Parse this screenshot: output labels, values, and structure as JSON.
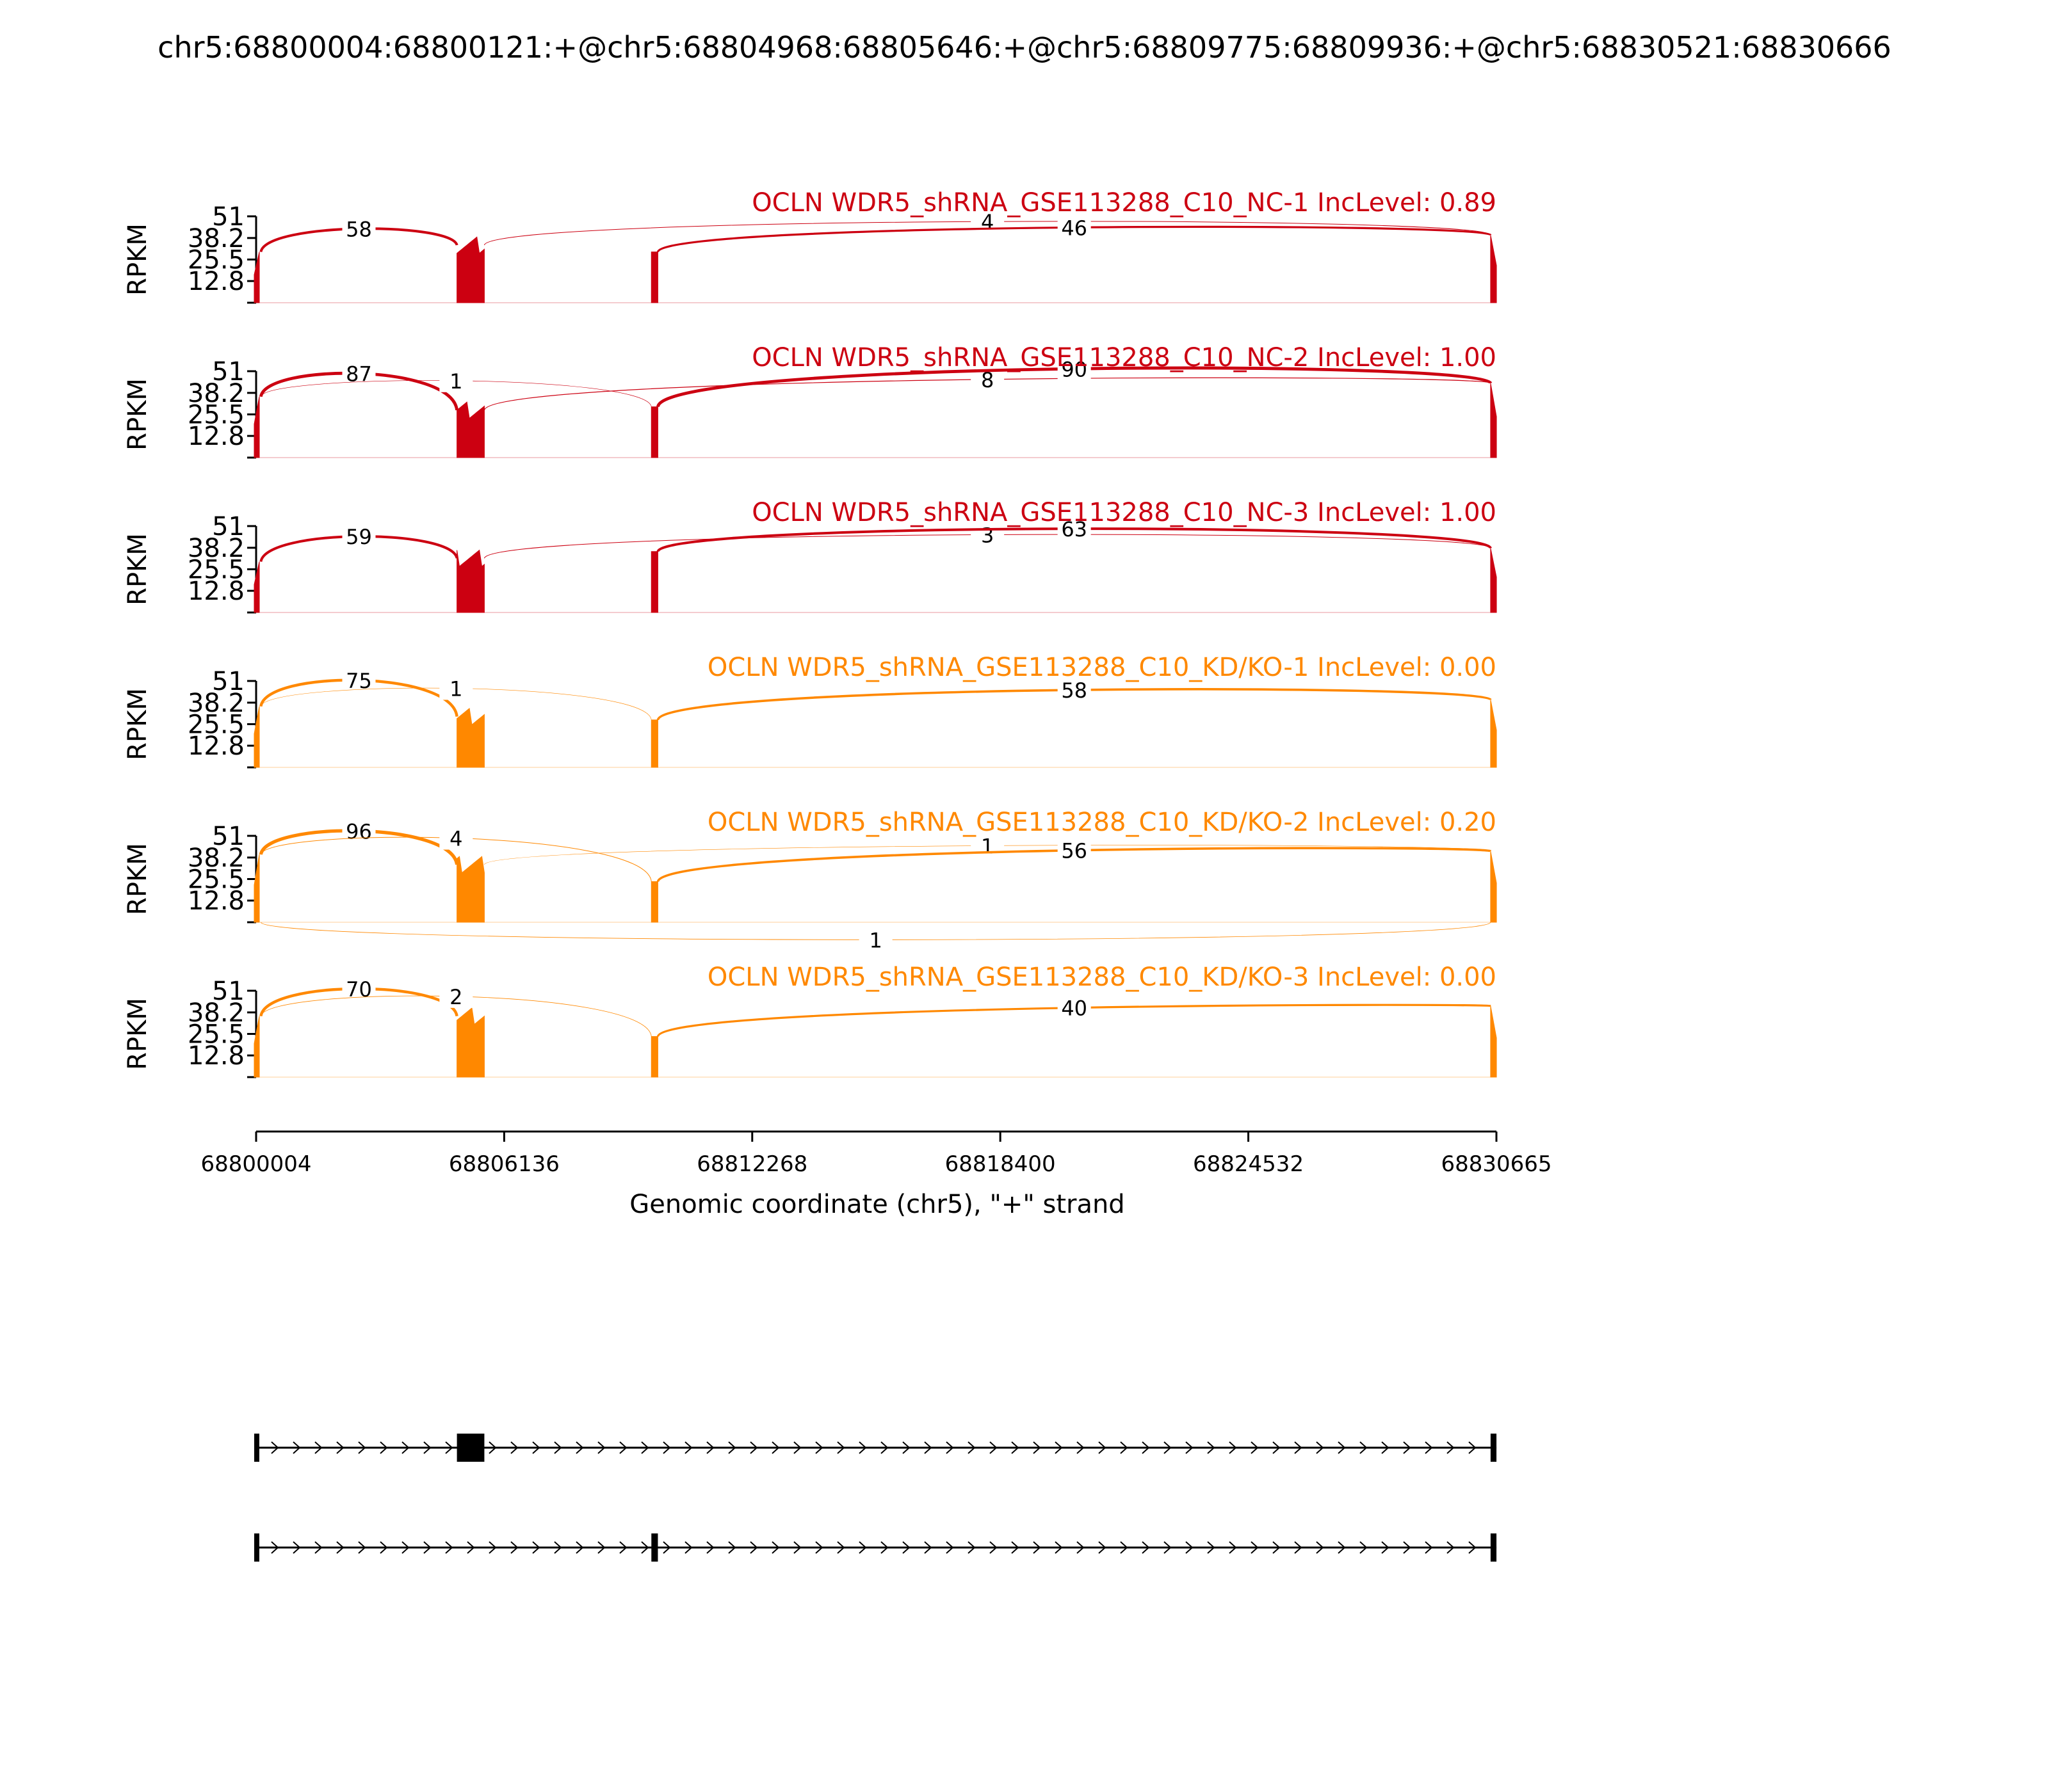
{
  "chart_data": {
    "type": "sashimi",
    "title": "chr5:68800004:68800121:+@chr5:68804968:68805646:+@chr5:68809775:68809936:+@chr5:68830521:68830666",
    "xlabel": "Genomic coordinate (chr5), \"+\" strand",
    "ylabel": "RPKM",
    "xlim": [
      68800004,
      68830665
    ],
    "x_ticks": [
      "68800004",
      "68806136",
      "68812268",
      "68818400",
      "68824532",
      "68830665"
    ],
    "ylim": [
      0,
      51
    ],
    "y_ticks": [
      "12.8",
      "25.5",
      "38.2",
      "51"
    ],
    "colors": {
      "nc": "#cc0011",
      "kd": "#ff8800",
      "model": "#000000"
    },
    "exons": [
      {
        "start": 68800004,
        "end": 68800121
      },
      {
        "start": 68804968,
        "end": 68805646
      },
      {
        "start": 68809775,
        "end": 68809936
      },
      {
        "start": 68830521,
        "end": 68830666
      }
    ],
    "tracks": [
      {
        "label": "OCLN WDR5_shRNA_GSE113288_C10_NC-1 IncLevel: 0.89",
        "group": "nc",
        "coverage": [
          30,
          34,
          0,
          30,
          0,
          40
        ],
        "junctions": [
          {
            "from": 68800121,
            "to": 68804968,
            "count": "58",
            "side": "top",
            "h": 40,
            "w": 2.0
          },
          {
            "from": 68805646,
            "to": 68830521,
            "count": "4",
            "side": "top",
            "h": 44,
            "w": 0.5
          },
          {
            "from": 68809936,
            "to": 68830521,
            "count": "46",
            "side": "top",
            "h": 40,
            "w": 1.6
          }
        ]
      },
      {
        "label": "OCLN WDR5_shRNA_GSE113288_C10_NC-2 IncLevel: 1.00",
        "group": "nc",
        "coverage": [
          36,
          28,
          0,
          30,
          0,
          44
        ],
        "junctions": [
          {
            "from": 68800121,
            "to": 68804968,
            "count": "87",
            "side": "top",
            "h": 48,
            "w": 2.4
          },
          {
            "from": 68800121,
            "to": 68809775,
            "count": "1",
            "side": "top",
            "h": 42,
            "w": 0.3
          },
          {
            "from": 68805646,
            "to": 68830521,
            "count": "8",
            "side": "top",
            "h": 42,
            "w": 0.6
          },
          {
            "from": 68809936,
            "to": 68830521,
            "count": "90",
            "side": "top",
            "h": 50,
            "w": 2.4
          }
        ]
      },
      {
        "label": "OCLN WDR5_shRNA_GSE113288_C10_NC-3 IncLevel: 1.00",
        "group": "nc",
        "coverage": [
          30,
          32,
          0,
          36,
          0,
          38
        ],
        "junctions": [
          {
            "from": 68800121,
            "to": 68804968,
            "count": "59",
            "side": "top",
            "h": 42,
            "w": 2.0
          },
          {
            "from": 68805646,
            "to": 68830521,
            "count": "3",
            "side": "top",
            "h": 42,
            "w": 0.5
          },
          {
            "from": 68809936,
            "to": 68830521,
            "count": "63",
            "side": "top",
            "h": 46,
            "w": 2.0
          }
        ]
      },
      {
        "label": "OCLN WDR5_shRNA_GSE113288_C10_KD/KO-1 IncLevel: 0.00",
        "group": "kd",
        "coverage": [
          36,
          30,
          0,
          28,
          0,
          40
        ],
        "junctions": [
          {
            "from": 68800121,
            "to": 68804968,
            "count": "75",
            "side": "top",
            "h": 50,
            "w": 2.2
          },
          {
            "from": 68800121,
            "to": 68809775,
            "count": "1",
            "side": "top",
            "h": 44,
            "w": 0.3
          },
          {
            "from": 68809936,
            "to": 68830521,
            "count": "58",
            "side": "top",
            "h": 42,
            "w": 1.8
          }
        ]
      },
      {
        "label": "OCLN WDR5_shRNA_GSE113288_C10_KD/KO-2 IncLevel: 0.20",
        "group": "kd",
        "coverage": [
          40,
          34,
          0,
          24,
          0,
          42
        ],
        "junctions": [
          {
            "from": 68800121,
            "to": 68804968,
            "count": "96",
            "side": "top",
            "h": 52,
            "w": 2.6
          },
          {
            "from": 68800121,
            "to": 68809775,
            "count": "4",
            "side": "top",
            "h": 48,
            "w": 0.5
          },
          {
            "from": 68805646,
            "to": 68830521,
            "count": "1",
            "side": "top",
            "h": 40,
            "w": 0.3
          },
          {
            "from": 68809936,
            "to": 68830521,
            "count": "56",
            "side": "top",
            "h": 38,
            "w": 1.8
          },
          {
            "from": 68800121,
            "to": 68830521,
            "count": "1",
            "side": "bottom",
            "h": 14,
            "w": 0.4
          }
        ]
      },
      {
        "label": "OCLN WDR5_shRNA_GSE113288_C10_KD/KO-3 IncLevel: 0.00",
        "group": "kd",
        "coverage": [
          36,
          36,
          0,
          24,
          0,
          42
        ],
        "junctions": [
          {
            "from": 68800121,
            "to": 68804968,
            "count": "70",
            "side": "top",
            "h": 50,
            "w": 2.2
          },
          {
            "from": 68800121,
            "to": 68809775,
            "count": "2",
            "side": "top",
            "h": 46,
            "w": 0.4
          },
          {
            "from": 68809936,
            "to": 68830521,
            "count": "40",
            "side": "top",
            "h": 36,
            "w": 1.6
          }
        ]
      }
    ],
    "isoforms": [
      {
        "exons": [
          [
            68800004,
            68800121
          ],
          [
            68804968,
            68805646
          ],
          [
            68830521,
            68830666
          ]
        ]
      },
      {
        "exons": [
          [
            68800004,
            68800121
          ],
          [
            68809775,
            68809936
          ],
          [
            68830521,
            68830666
          ]
        ]
      }
    ]
  }
}
